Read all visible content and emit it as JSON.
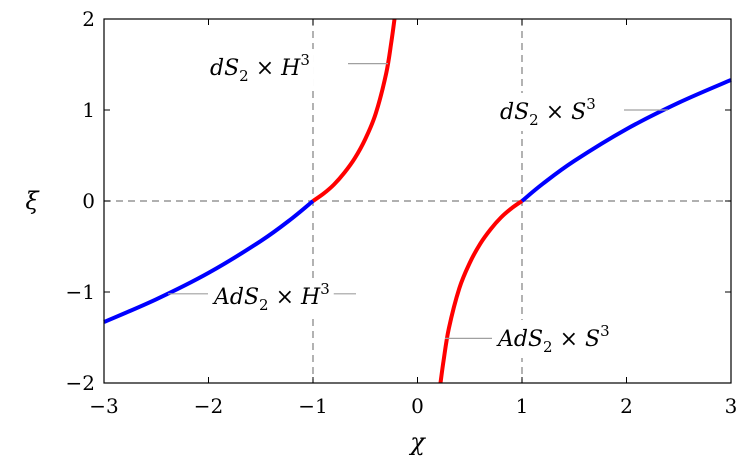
{
  "chart_data": {
    "type": "line",
    "title": "",
    "xlabel": "χ",
    "ylabel": "ξ",
    "xlim": [
      -3,
      3
    ],
    "ylim": [
      -2,
      2
    ],
    "xticks": [
      -3,
      -2,
      -1,
      0,
      1,
      2,
      3
    ],
    "yticks": [
      -2,
      -1,
      0,
      1,
      2
    ],
    "xtick_labels": [
      "−3",
      "−2",
      "−1",
      "0",
      "1",
      "2",
      "3"
    ],
    "ytick_labels": [
      "−2",
      "−1",
      "0",
      "1",
      "2"
    ],
    "grid": false,
    "reference_lines": [
      {
        "orientation": "vertical",
        "value": -1,
        "style": "dashed",
        "color": "#808080"
      },
      {
        "orientation": "vertical",
        "value": 1,
        "style": "dashed",
        "color": "#808080"
      },
      {
        "orientation": "horizontal",
        "value": 0,
        "style": "dashed",
        "color": "#808080"
      }
    ],
    "series": [
      {
        "color": "#ff0000",
        "x": [
          -1.0,
          -0.9,
          -0.8,
          -0.7,
          -0.6,
          -0.5,
          -0.4,
          -0.3,
          -0.25,
          -0.22
        ],
        "y": [
          0.0,
          0.08,
          0.18,
          0.31,
          0.47,
          0.68,
          0.96,
          1.4,
          1.75,
          2.0
        ]
      },
      {
        "color": "#0000ff",
        "x": [
          -3.0,
          -2.5,
          -2.0,
          -1.5,
          -1.2,
          -1.0
        ],
        "y": [
          -1.33,
          -1.08,
          -0.79,
          -0.44,
          -0.19,
          0.0
        ]
      },
      {
        "color": "#ff0000",
        "x": [
          0.22,
          0.25,
          0.3,
          0.4,
          0.5,
          0.6,
          0.7,
          0.8,
          0.9,
          1.0
        ],
        "y": [
          -2.0,
          -1.75,
          -1.4,
          -0.96,
          -0.68,
          -0.47,
          -0.31,
          -0.18,
          -0.08,
          0.0
        ]
      },
      {
        "color": "#0000ff",
        "x": [
          1.0,
          1.2,
          1.5,
          2.0,
          2.5,
          3.0
        ],
        "y": [
          0.0,
          0.19,
          0.44,
          0.79,
          1.08,
          1.33
        ]
      }
    ],
    "annotations": [
      {
        "base": "dS",
        "sub": "2",
        "op": " × ",
        "base2": "H",
        "sup": "3",
        "anchor_x": -0.7,
        "anchor_y": 1.51
      },
      {
        "base": "dS",
        "sub": "2",
        "op": " × ",
        "base2": "S",
        "sup": "3",
        "anchor_x": 1.2,
        "anchor_y": 1.0
      },
      {
        "base": "AdS",
        "sub": "2",
        "op": " × ",
        "base2": "H",
        "sup": "3",
        "anchor_x": -2.4,
        "anchor_y": -1.02
      },
      {
        "base": "AdS",
        "sub": "2",
        "op": " × ",
        "base2": "S",
        "sup": "3",
        "anchor_x": 0.3,
        "anchor_y": -1.51
      }
    ]
  }
}
